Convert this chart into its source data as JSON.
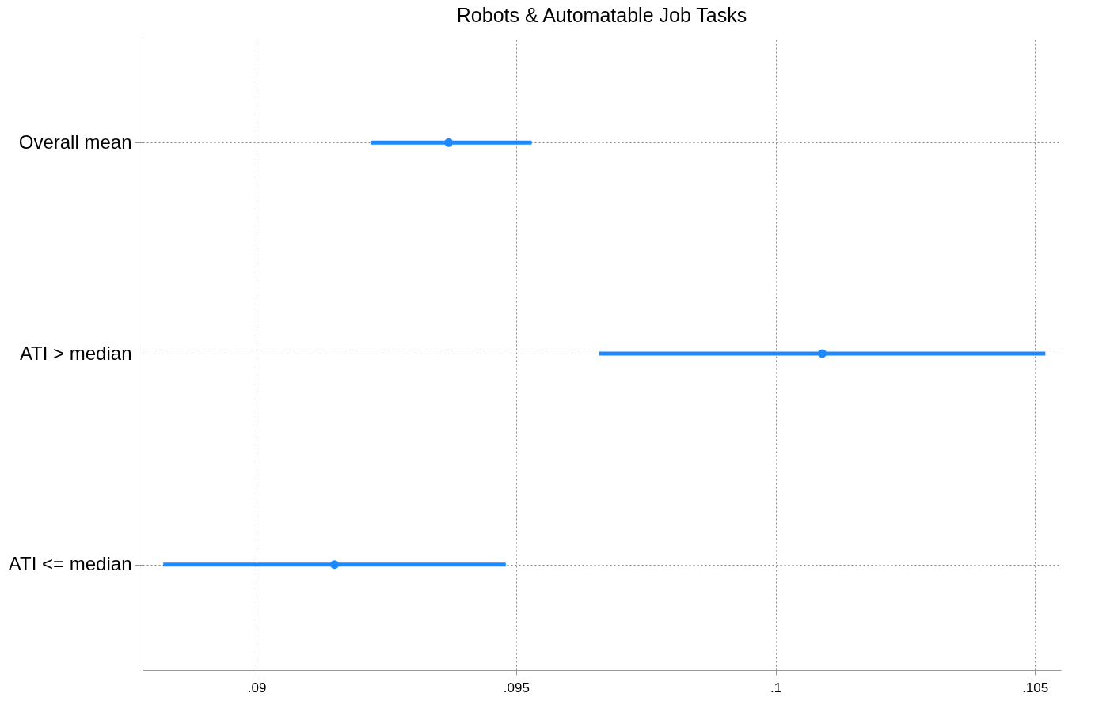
{
  "chart_data": {
    "type": "scatter",
    "title": "Robots & Automatable Job Tasks",
    "orientation": "horizontal",
    "categories": [
      "Overall mean",
      "ATI > median",
      "ATI <= median"
    ],
    "values": [
      0.0937,
      0.1009,
      0.0915
    ],
    "errors": [
      [
        0.0922,
        0.0953
      ],
      [
        0.0966,
        0.1052
      ],
      [
        0.0882,
        0.0948
      ]
    ],
    "color": "#1e88ff",
    "marker": "circle",
    "xlim": [
      0.0878,
      0.1055
    ],
    "xticks": [
      {
        "value": 0.09,
        "label": ".09"
      },
      {
        "value": 0.095,
        "label": ".095"
      },
      {
        "value": 0.1,
        "label": ".1"
      },
      {
        "value": 0.105,
        "label": ".105"
      }
    ],
    "grid": true
  }
}
